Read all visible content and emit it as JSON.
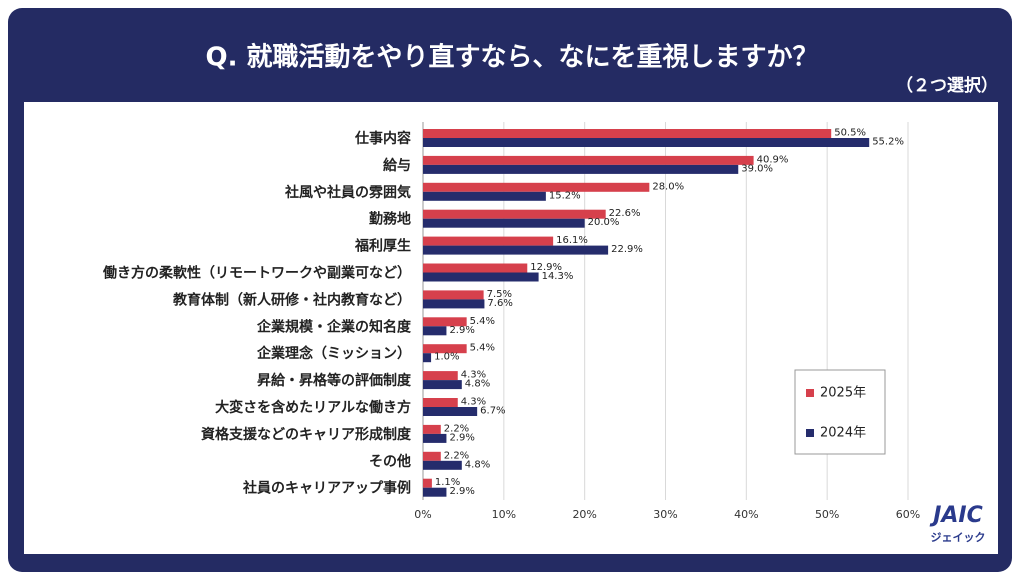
{
  "chart_data": {
    "type": "bar",
    "orientation": "horizontal",
    "title": "Q. 就職活動をやり直すなら、なにを重視しますか？",
    "subtitle": "（２つ選択）",
    "categories": [
      "仕事内容",
      "給与",
      "社風や社員の雰囲気",
      "勤務地",
      "福利厚生",
      "働き方の柔軟性（リモートワークや副業可など）",
      "教育体制（新人研修・社内教育など）",
      "企業規模・企業の知名度",
      "企業理念（ミッション）",
      "昇給・昇格等の評価制度",
      "大変さを含めたリアルな働き方",
      "資格支援などのキャリア形成制度",
      "その他",
      "社員のキャリアアップ事例"
    ],
    "series": [
      {
        "name": "2025年",
        "color": "#d6404c",
        "values": [
          50.5,
          40.9,
          28.0,
          22.6,
          16.1,
          12.9,
          7.5,
          5.4,
          5.4,
          4.3,
          4.3,
          2.2,
          2.2,
          1.1
        ],
        "value_labels": [
          "50.5%",
          "40.9%",
          "28.0%",
          "22.6%",
          "16.1%",
          "12.9%",
          "7.5%",
          "5.4%",
          "5.4%",
          "4.3%",
          "4.3%",
          "2.2%",
          "2.2%",
          "1.1%"
        ]
      },
      {
        "name": "2024年",
        "color": "#252c6c",
        "values": [
          55.2,
          39.0,
          15.2,
          20.0,
          22.9,
          14.3,
          7.6,
          2.9,
          1.0,
          4.8,
          6.7,
          2.9,
          4.8,
          2.9
        ],
        "value_labels": [
          "55.2%",
          "39.0%",
          "15.2%",
          "20.0%",
          "22.9%",
          "14.3%",
          "7.6%",
          "2.9%",
          "1.0%",
          "4.8%",
          "6.7%",
          "2.9%",
          "4.8%",
          "2.9%"
        ]
      }
    ],
    "xlim": [
      0,
      60
    ],
    "xticks": [
      {
        "value": 0,
        "label": "0%"
      },
      {
        "value": 10,
        "label": "10%"
      },
      {
        "value": 20,
        "label": "20%"
      },
      {
        "value": 30,
        "label": "30%"
      },
      {
        "value": 40,
        "label": "40%"
      },
      {
        "value": 50,
        "label": "50%"
      },
      {
        "value": 60,
        "label": "60%"
      }
    ],
    "grid": true,
    "legend": "lower-right"
  },
  "logo": {
    "name": "JAIC",
    "sub": "ジェイック"
  }
}
